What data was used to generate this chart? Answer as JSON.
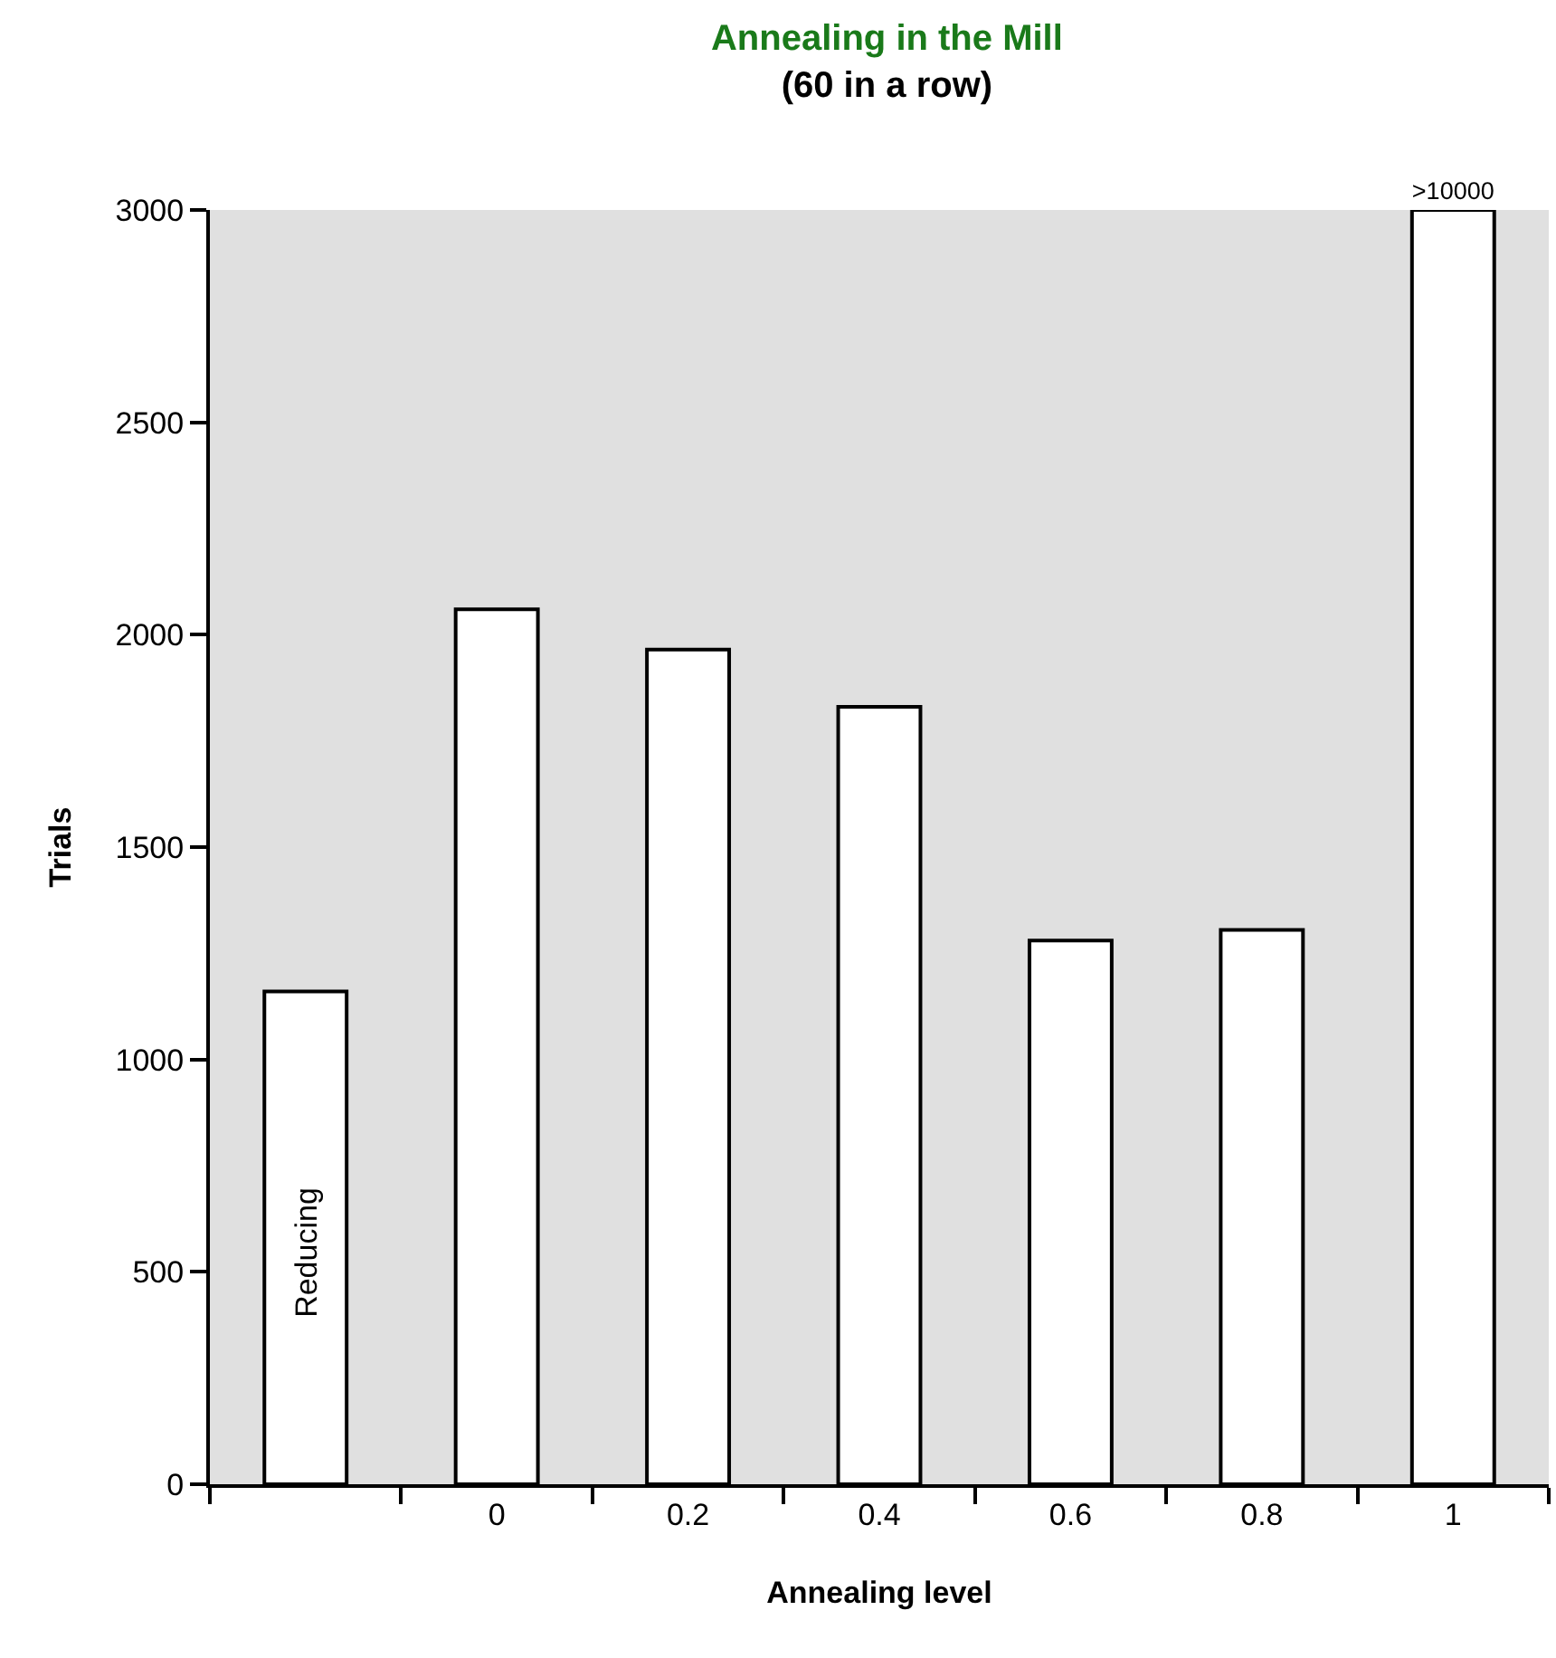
{
  "chart_data": {
    "type": "bar",
    "title": "Annealing in the Mill",
    "subtitle": "(60 in a row)",
    "xlabel": "Annealing level",
    "ylabel": "Trials",
    "categories": [
      null,
      "0",
      "0.2",
      "0.4",
      "0.6",
      "0.8",
      "1"
    ],
    "values": [
      1160,
      2060,
      1965,
      1830,
      1280,
      1305,
      3000
    ],
    "value_labels": [
      null,
      null,
      null,
      null,
      null,
      null,
      ">10000"
    ],
    "colors": [
      "#ffffff",
      "#ffffff",
      "#ffffff",
      "#ffffff",
      "#ffffff",
      "#ffffff",
      "#ffffff"
    ],
    "annotations": [
      "Reducing"
    ],
    "ylim": [
      0,
      3000
    ],
    "yticks": [
      0,
      500,
      1000,
      1500,
      2000,
      2500,
      3000
    ],
    "grid": false
  }
}
